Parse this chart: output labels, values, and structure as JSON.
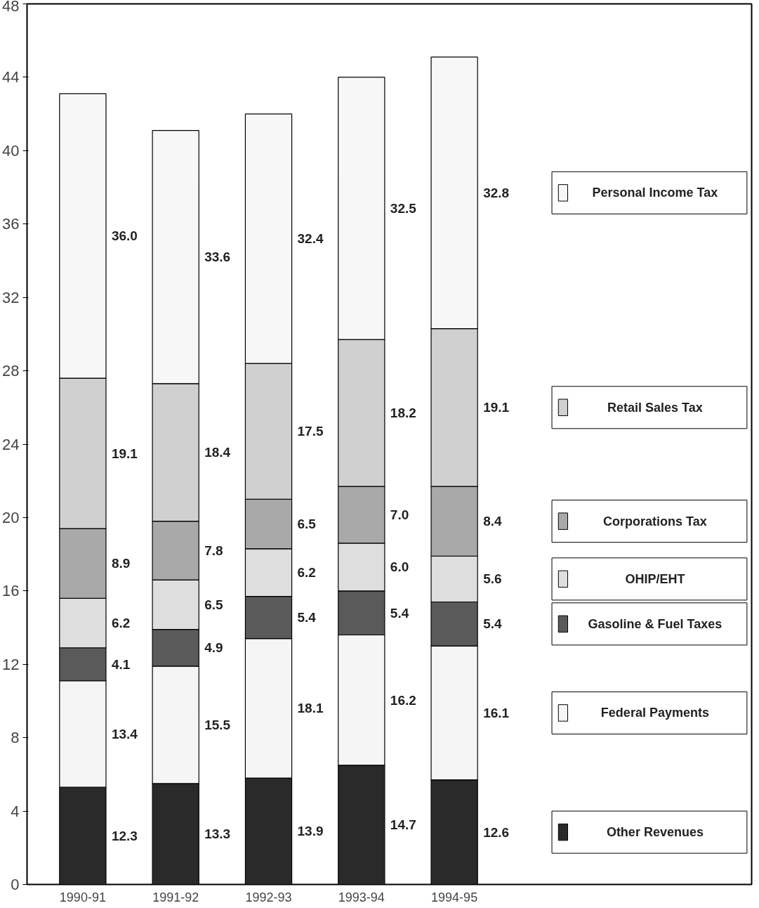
{
  "chart_data": {
    "type": "bar",
    "stacked": true,
    "categories": [
      "1990-91",
      "1991-92",
      "1992-93",
      "1993-94",
      "1994-95"
    ],
    "series": [
      {
        "name": "Other Revenues",
        "color": "#2a2a2a",
        "values": [
          5.3,
          5.5,
          5.8,
          6.5,
          5.7
        ]
      },
      {
        "name": "Federal Payments",
        "color": "#f5f5f5",
        "values": [
          5.8,
          6.4,
          7.6,
          7.1,
          7.3
        ]
      },
      {
        "name": "Gasoline & Fuel Taxes",
        "color": "#5a5a5a",
        "values": [
          1.8,
          2.0,
          2.3,
          2.4,
          2.4
        ]
      },
      {
        "name": "OHIP/EHT",
        "color": "#dedede",
        "values": [
          2.7,
          2.7,
          2.6,
          2.6,
          2.5
        ]
      },
      {
        "name": "Corporations Tax",
        "color": "#a9a9a9",
        "values": [
          3.8,
          3.2,
          2.7,
          3.1,
          3.8
        ]
      },
      {
        "name": "Retail Sales Tax",
        "color": "#d0d0d0",
        "values": [
          8.2,
          7.5,
          7.4,
          8.0,
          8.6
        ]
      },
      {
        "name": "Personal Income Tax",
        "color": "#f7f7f7",
        "values": [
          15.5,
          13.8,
          13.6,
          14.3,
          14.8
        ]
      }
    ],
    "annotations": [
      "12.3",
      "13.4",
      "4.1",
      "6.2",
      "8.9",
      "19.1",
      "36.0",
      "13.3",
      "15.5",
      "4.9",
      "6.5",
      "7.8",
      "18.4",
      "33.6",
      "13.9",
      "18.1",
      "5.4",
      "6.2",
      "6.5",
      "17.5",
      "32.4",
      "14.7",
      "16.2",
      "5.4",
      "6.0",
      "7.0",
      "18.2",
      "32.5",
      "12.6",
      "16.1",
      "5.4",
      "5.6",
      "8.4",
      "19.1",
      "32.8"
    ],
    "ylim": [
      0,
      48
    ],
    "yticks": [
      0,
      4,
      8,
      12,
      16,
      20,
      24,
      28,
      32,
      36,
      40,
      44,
      48
    ],
    "grid": false,
    "legend": "right"
  }
}
